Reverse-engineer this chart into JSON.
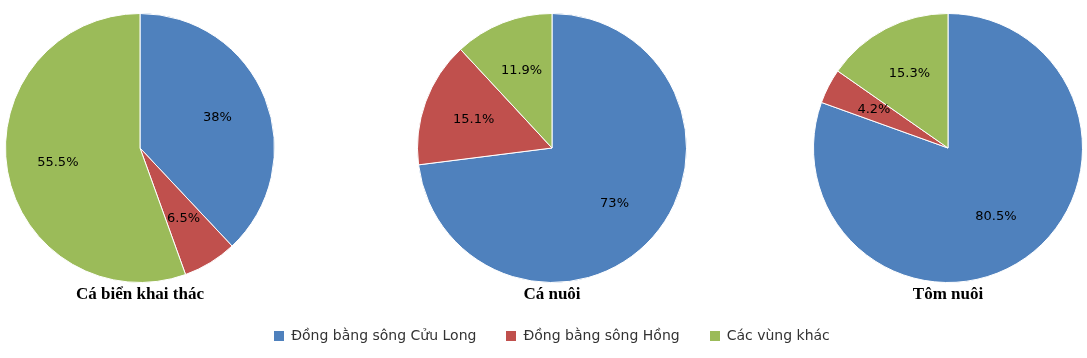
{
  "chart_data": [
    {
      "type": "pie",
      "title": "Cá biển khai thác",
      "categories": [
        null,
        null,
        null
      ],
      "values": [
        38,
        6.5,
        55.5
      ],
      "colors": [
        "#4f81bd",
        "#c0504d",
        "#9bbb59"
      ],
      "value_labels": [
        "38%",
        "6.5%",
        "55.5%"
      ]
    },
    {
      "type": "pie",
      "title": "Cá nuôi",
      "categories": [
        "Đồng bằng sông Cửu Long",
        "Đồng bằng sông Hồng",
        "Các vùng khác"
      ],
      "values": [
        73,
        15.1,
        11.9
      ],
      "colors": [
        "#4f81bd",
        "#c0504d",
        "#9bbb59"
      ],
      "value_labels": [
        "73%",
        "15.1%",
        "11.9%"
      ],
      "legend": "bottom"
    },
    {
      "type": "pie",
      "title": "Tôm nuôi",
      "categories": [
        null,
        null,
        null
      ],
      "values": [
        80.5,
        4.2,
        15.3
      ],
      "colors": [
        "#4f81bd",
        "#c0504d",
        "#9bbb59"
      ],
      "value_labels": [
        "80.5%",
        "4.2%",
        "15.3%"
      ]
    }
  ]
}
